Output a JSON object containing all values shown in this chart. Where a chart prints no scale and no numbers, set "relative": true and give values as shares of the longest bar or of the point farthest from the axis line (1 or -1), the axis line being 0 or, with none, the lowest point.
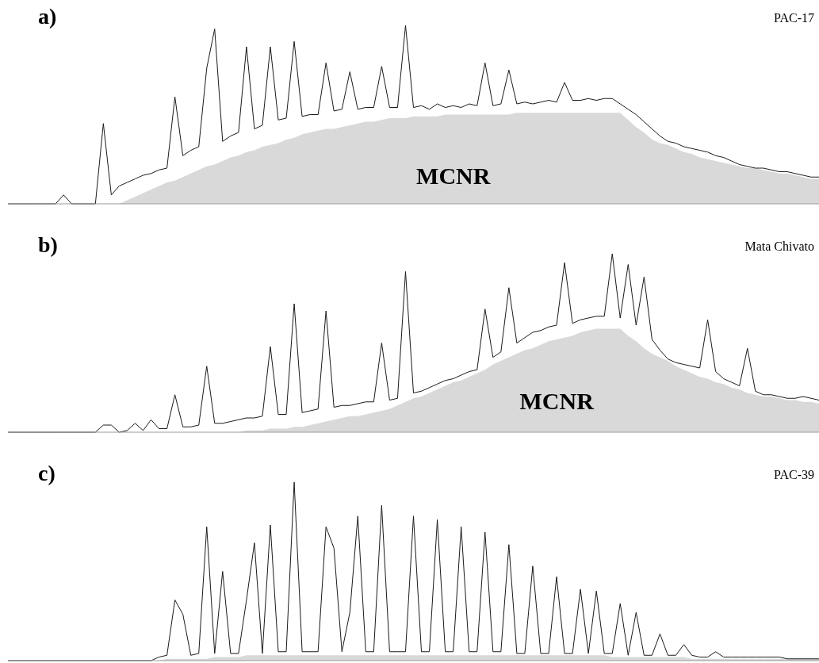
{
  "chart_data": [
    {
      "type": "line",
      "title": "a)",
      "subtitle": "PAC-17",
      "relative": true,
      "categories": [
        null,
        null,
        null,
        null,
        null,
        null,
        null,
        null,
        null,
        null,
        null,
        null,
        null,
        null,
        null,
        null,
        null,
        null,
        null,
        null,
        null,
        null,
        null,
        null,
        null,
        null,
        null,
        null,
        null,
        null,
        null,
        null,
        null,
        null,
        null,
        null,
        null,
        null,
        null,
        null,
        null,
        null,
        null,
        null,
        null,
        null,
        null,
        null,
        null,
        null,
        null,
        null,
        null,
        null,
        null,
        null,
        null,
        null,
        null,
        null,
        null,
        null,
        null,
        null,
        null,
        null,
        null,
        null,
        null,
        null,
        null,
        null,
        null,
        null,
        null,
        null,
        null,
        null,
        null,
        null,
        null,
        null,
        null,
        null,
        null,
        null,
        null,
        null,
        null,
        null,
        null,
        null,
        null,
        null,
        null,
        null,
        null,
        null,
        null,
        null,
        null,
        null,
        null
      ],
      "series": [
        {
          "type": "area",
          "name": "MCNR",
          "color": "#d9d9d9",
          "values": [
            0,
            0,
            0,
            0,
            0,
            0,
            0,
            0,
            0,
            0,
            0,
            0,
            0,
            0,
            0,
            0.02,
            0.04,
            0.06,
            0.08,
            0.1,
            0.12,
            0.13,
            0.15,
            0.17,
            0.19,
            0.21,
            0.22,
            0.24,
            0.26,
            0.27,
            0.29,
            0.3,
            0.32,
            0.33,
            0.34,
            0.36,
            0.37,
            0.39,
            0.4,
            0.41,
            0.42,
            0.42,
            0.43,
            0.44,
            0.45,
            0.46,
            0.46,
            0.47,
            0.48,
            0.48,
            0.48,
            0.49,
            0.49,
            0.49,
            0.49,
            0.5,
            0.5,
            0.5,
            0.5,
            0.5,
            0.5,
            0.5,
            0.5,
            0.5,
            0.51,
            0.51,
            0.51,
            0.51,
            0.51,
            0.51,
            0.51,
            0.51,
            0.51,
            0.51,
            0.51,
            0.51,
            0.51,
            0.51,
            0.47,
            0.43,
            0.4,
            0.36,
            0.34,
            0.33,
            0.31,
            0.29,
            0.28,
            0.26,
            0.25,
            0.24,
            0.23,
            0.22,
            0.21,
            0.2,
            0.2,
            0.19,
            0.18,
            0.17,
            0.17,
            0.16,
            0.15,
            0.14,
            0.14
          ]
        },
        {
          "color": "#1a1a1a",
          "values": [
            0,
            0,
            0,
            0,
            0,
            0,
            0,
            0.05,
            0,
            0,
            0,
            0,
            0.45,
            0.05,
            0.1,
            0.12,
            0.14,
            0.16,
            0.17,
            0.19,
            0.2,
            0.6,
            0.27,
            0.3,
            0.32,
            0.76,
            0.98,
            0.35,
            0.38,
            0.4,
            0.88,
            0.42,
            0.44,
            0.88,
            0.47,
            0.48,
            0.91,
            0.49,
            0.5,
            0.5,
            0.79,
            0.52,
            0.53,
            0.74,
            0.53,
            0.54,
            0.54,
            0.77,
            0.54,
            0.54,
            1,
            0.54,
            0.55,
            0.53,
            0.56,
            0.54,
            0.55,
            0.54,
            0.56,
            0.55,
            0.79,
            0.55,
            0.56,
            0.75,
            0.56,
            0.57,
            0.56,
            0.57,
            0.58,
            0.57,
            0.68,
            0.58,
            0.58,
            0.59,
            0.58,
            0.59,
            0.59,
            0.56,
            0.53,
            0.5,
            0.46,
            0.42,
            0.38,
            0.35,
            0.34,
            0.32,
            0.31,
            0.3,
            0.29,
            0.27,
            0.26,
            0.24,
            0.22,
            0.21,
            0.2,
            0.2,
            0.19,
            0.18,
            0.18,
            0.17,
            0.16,
            0.15,
            0.15
          ]
        }
      ]
    },
    {
      "type": "line",
      "title": "b)",
      "subtitle": "Mata Chivato",
      "relative": true,
      "categories": [
        null,
        null,
        null,
        null,
        null,
        null,
        null,
        null,
        null,
        null,
        null,
        null,
        null,
        null,
        null,
        null,
        null,
        null,
        null,
        null,
        null,
        null,
        null,
        null,
        null,
        null,
        null,
        null,
        null,
        null,
        null,
        null,
        null,
        null,
        null,
        null,
        null,
        null,
        null,
        null,
        null,
        null,
        null,
        null,
        null,
        null,
        null,
        null,
        null,
        null,
        null,
        null,
        null,
        null,
        null,
        null,
        null,
        null,
        null,
        null,
        null,
        null,
        null,
        null,
        null,
        null,
        null,
        null,
        null,
        null,
        null,
        null,
        null,
        null,
        null,
        null,
        null,
        null,
        null,
        null,
        null,
        null,
        null,
        null,
        null,
        null,
        null,
        null,
        null,
        null,
        null,
        null,
        null,
        null,
        null,
        null,
        null,
        null,
        null,
        null,
        null,
        null,
        null
      ],
      "series": [
        {
          "type": "area",
          "name": "MCNR",
          "color": "#d9d9d9",
          "values": [
            0,
            0,
            0,
            0,
            0,
            0,
            0,
            0,
            0,
            0,
            0,
            0,
            0,
            0,
            0,
            0,
            0,
            0,
            0,
            0,
            0,
            0,
            0,
            0,
            0,
            0,
            0,
            0,
            0,
            0,
            0.01,
            0.01,
            0.01,
            0.02,
            0.02,
            0.02,
            0.03,
            0.03,
            0.04,
            0.05,
            0.06,
            0.07,
            0.08,
            0.09,
            0.09,
            0.1,
            0.11,
            0.12,
            0.13,
            0.15,
            0.17,
            0.19,
            0.2,
            0.22,
            0.24,
            0.26,
            0.28,
            0.29,
            0.31,
            0.33,
            0.35,
            0.38,
            0.4,
            0.42,
            0.44,
            0.46,
            0.47,
            0.49,
            0.51,
            0.52,
            0.53,
            0.54,
            0.56,
            0.57,
            0.58,
            0.58,
            0.58,
            0.58,
            0.54,
            0.51,
            0.47,
            0.44,
            0.42,
            0.4,
            0.37,
            0.35,
            0.33,
            0.31,
            0.3,
            0.28,
            0.27,
            0.25,
            0.24,
            0.22,
            0.21,
            0.2,
            0.2,
            0.19,
            0.18,
            0.18,
            0.17,
            0.17,
            0.16
          ]
        },
        {
          "color": "#1a1a1a",
          "values": [
            0,
            0,
            0,
            0,
            0,
            0,
            0,
            0,
            0,
            0,
            0,
            0,
            0.04,
            0.04,
            0,
            0.01,
            0.05,
            0.01,
            0.07,
            0.02,
            0.02,
            0.21,
            0.03,
            0.03,
            0.04,
            0.37,
            0.05,
            0.05,
            0.06,
            0.07,
            0.08,
            0.08,
            0.09,
            0.48,
            0.1,
            0.1,
            0.72,
            0.11,
            0.12,
            0.13,
            0.68,
            0.14,
            0.15,
            0.15,
            0.16,
            0.17,
            0.17,
            0.5,
            0.18,
            0.19,
            0.9,
            0.22,
            0.23,
            0.25,
            0.27,
            0.29,
            0.3,
            0.32,
            0.34,
            0.35,
            0.69,
            0.42,
            0.45,
            0.81,
            0.5,
            0.53,
            0.56,
            0.57,
            0.59,
            0.6,
            0.95,
            0.61,
            0.63,
            0.64,
            0.65,
            0.65,
            1,
            0.64,
            0.94,
            0.6,
            0.87,
            0.52,
            0.46,
            0.41,
            0.39,
            0.38,
            0.37,
            0.36,
            0.63,
            0.34,
            0.3,
            0.28,
            0.26,
            0.47,
            0.23,
            0.21,
            0.21,
            0.2,
            0.19,
            0.19,
            0.2,
            0.19,
            0.18
          ]
        }
      ]
    },
    {
      "type": "line",
      "title": "c)",
      "subtitle": "PAC-39",
      "relative": true,
      "categories": [
        null,
        null,
        null,
        null,
        null,
        null,
        null,
        null,
        null,
        null,
        null,
        null,
        null,
        null,
        null,
        null,
        null,
        null,
        null,
        null,
        null,
        null,
        null,
        null,
        null,
        null,
        null,
        null,
        null,
        null,
        null,
        null,
        null,
        null,
        null,
        null,
        null,
        null,
        null,
        null,
        null,
        null,
        null,
        null,
        null,
        null,
        null,
        null,
        null,
        null,
        null,
        null,
        null,
        null,
        null,
        null,
        null,
        null,
        null,
        null,
        null,
        null,
        null,
        null,
        null,
        null,
        null,
        null,
        null,
        null,
        null,
        null,
        null,
        null,
        null,
        null,
        null,
        null,
        null,
        null,
        null,
        null,
        null,
        null,
        null,
        null,
        null,
        null,
        null,
        null,
        null,
        null,
        null,
        null,
        null,
        null,
        null,
        null,
        null,
        null,
        null,
        null,
        null
      ],
      "series": [
        {
          "type": "area",
          "color": "#d9d9d9",
          "values": [
            0,
            0,
            0,
            0,
            0,
            0,
            0,
            0,
            0,
            0,
            0,
            0,
            0,
            0,
            0,
            0,
            0,
            0,
            0,
            0,
            0.01,
            0.01,
            0.01,
            0.01,
            0.01,
            0.01,
            0.02,
            0.02,
            0.02,
            0.02,
            0.03,
            0.03,
            0.03,
            0.03,
            0.03,
            0.03,
            0.03,
            0.03,
            0.03,
            0.03,
            0.03,
            0.03,
            0.03,
            0.03,
            0.03,
            0.03,
            0.03,
            0.03,
            0.03,
            0.03,
            0.03,
            0.03,
            0.03,
            0.03,
            0.03,
            0.03,
            0.03,
            0.03,
            0.03,
            0.03,
            0.03,
            0.03,
            0.03,
            0.03,
            0.03,
            0.03,
            0.03,
            0.03,
            0.03,
            0.03,
            0.03,
            0.03,
            0.03,
            0.03,
            0.03,
            0.03,
            0.02,
            0.02,
            0.02,
            0.02,
            0.02,
            0.02,
            0.02,
            0.02,
            0.02,
            0.02,
            0.01,
            0.01,
            0.01,
            0.01,
            0.01,
            0.01,
            0.01,
            0.01,
            0.01,
            0.01,
            0.01,
            0.01,
            0.01,
            0.01,
            0.01,
            0.01,
            0.01
          ]
        },
        {
          "color": "#1a1a1a",
          "values": [
            0,
            0,
            0,
            0,
            0,
            0,
            0,
            0,
            0,
            0,
            0,
            0,
            0,
            0,
            0,
            0,
            0,
            0,
            0,
            0.02,
            0.03,
            0.34,
            0.26,
            0.03,
            0.04,
            0.75,
            0.04,
            0.5,
            0.04,
            0.04,
            0.34,
            0.66,
            0.04,
            0.76,
            0.05,
            0.05,
            1,
            0.05,
            0.05,
            0.05,
            0.75,
            0.63,
            0.05,
            0.27,
            0.81,
            0.05,
            0.05,
            0.87,
            0.05,
            0.05,
            0.05,
            0.81,
            0.05,
            0.05,
            0.79,
            0.05,
            0.05,
            0.75,
            0.05,
            0.05,
            0.72,
            0.05,
            0.05,
            0.65,
            0.04,
            0.04,
            0.53,
            0.04,
            0.04,
            0.47,
            0.04,
            0.04,
            0.4,
            0.04,
            0.39,
            0.04,
            0.04,
            0.32,
            0.03,
            0.27,
            0.03,
            0.03,
            0.15,
            0.03,
            0.03,
            0.09,
            0.03,
            0.02,
            0.02,
            0.05,
            0.02,
            0.02,
            0.02,
            0.02,
            0.02,
            0.02,
            0.02,
            0.02,
            0.01,
            0.01,
            0.01,
            0.01,
            0.01
          ]
        }
      ]
    }
  ]
}
